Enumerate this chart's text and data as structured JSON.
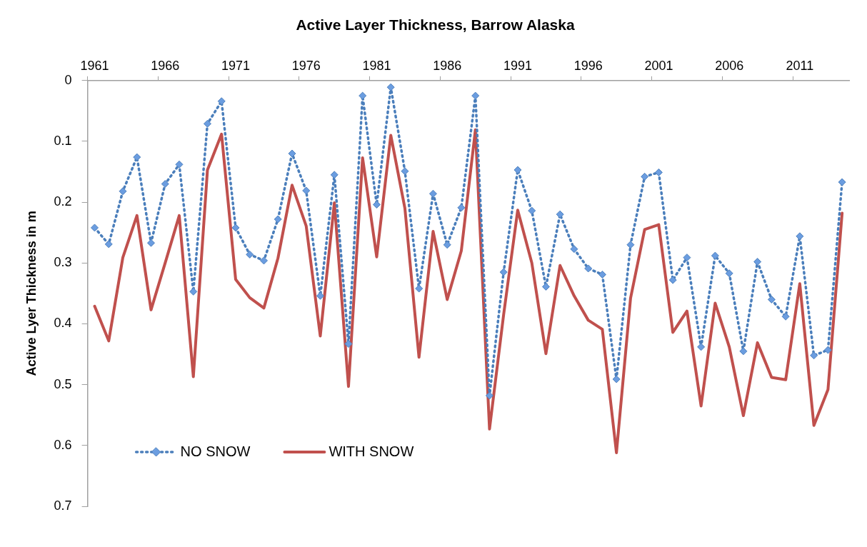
{
  "chart_data": {
    "type": "line",
    "title": "Active Layer Thickness, Barrow Alaska",
    "ylabel": "Active Lyer Thickness in m",
    "categories": [
      "1961",
      null,
      null,
      null,
      null,
      "1966",
      null,
      null,
      null,
      null,
      "1971",
      null,
      null,
      null,
      null,
      "1976",
      null,
      null,
      null,
      null,
      "1981",
      null,
      null,
      null,
      null,
      "1986",
      null,
      null,
      null,
      null,
      "1991",
      null,
      null,
      null,
      null,
      "1996",
      null,
      null,
      null,
      null,
      "2001",
      null,
      null,
      null,
      null,
      "2006",
      null,
      null,
      null,
      null,
      "2011",
      null,
      null,
      null
    ],
    "ylim": [
      0.7,
      0
    ],
    "yticks": [
      0,
      0.1,
      0.2,
      0.3,
      0.4,
      0.5,
      0.6,
      0.7
    ],
    "grid": false,
    "legend": "bottom left",
    "series": [
      {
        "name": "NO SNOW",
        "color": "#4a7ebb",
        "marker": "diamond",
        "line_style": "dotted",
        "values": [
          0.242,
          0.269,
          0.182,
          0.126,
          0.267,
          0.17,
          0.138,
          0.347,
          0.071,
          0.034,
          0.242,
          0.286,
          0.296,
          0.228,
          0.12,
          0.181,
          0.354,
          0.155,
          0.433,
          0.025,
          0.204,
          0.011,
          0.149,
          0.342,
          0.186,
          0.27,
          0.209,
          0.025,
          0.518,
          0.315,
          0.147,
          0.214,
          0.339,
          0.22,
          0.277,
          0.309,
          0.319,
          0.491,
          0.27,
          0.158,
          0.151,
          0.328,
          0.291,
          0.438,
          0.288,
          0.317,
          0.445,
          0.298,
          0.36,
          0.388,
          0.256,
          0.452,
          0.443,
          0.167
        ]
      },
      {
        "name": "WITH SNOW",
        "color": "#c0504d",
        "marker": "none",
        "line_style": "solid",
        "values": [
          0.371,
          0.428,
          0.291,
          0.222,
          0.377,
          0.3,
          0.222,
          0.487,
          0.147,
          0.088,
          0.327,
          0.357,
          0.374,
          0.292,
          0.172,
          0.239,
          0.42,
          0.201,
          0.503,
          0.127,
          0.29,
          0.09,
          0.21,
          0.455,
          0.248,
          0.36,
          0.28,
          0.081,
          0.573,
          0.385,
          0.213,
          0.3,
          0.449,
          0.304,
          0.354,
          0.394,
          0.409,
          0.612,
          0.358,
          0.245,
          0.237,
          0.414,
          0.379,
          0.535,
          0.366,
          0.438,
          0.551,
          0.431,
          0.488,
          0.492,
          0.334,
          0.567,
          0.508,
          0.218
        ]
      }
    ]
  }
}
